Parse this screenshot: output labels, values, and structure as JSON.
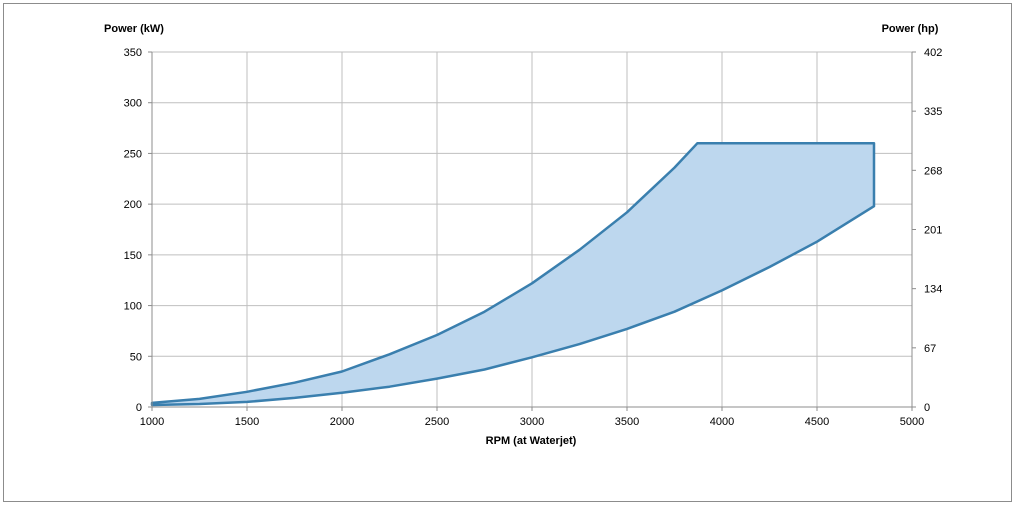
{
  "chart_data": {
    "type": "area",
    "title": "",
    "xlabel": "RPM (at Waterjet)",
    "ylabel": "Power (kW)",
    "y2label": "Power (hp)",
    "xlim": [
      1000,
      5000
    ],
    "ylim": [
      0,
      350
    ],
    "y2lim": [
      0,
      402
    ],
    "x_ticks": [
      1000,
      1500,
      2000,
      2500,
      3000,
      3500,
      4000,
      4500,
      5000
    ],
    "y_ticks": [
      0,
      50,
      100,
      150,
      200,
      250,
      300,
      350
    ],
    "y2_ticks": [
      0,
      67,
      134,
      201,
      268,
      335,
      402
    ],
    "grid": true,
    "legend": "none",
    "fill_color": "#bdd7ee",
    "line_color": "#3a7fae",
    "series": [
      {
        "role": "upper",
        "x": [
          1000,
          1250,
          1500,
          1750,
          2000,
          2250,
          2500,
          2750,
          3000,
          3250,
          3500,
          3750,
          3870,
          4000,
          4250,
          4500,
          4800
        ],
        "values": [
          4,
          8,
          15,
          24,
          35,
          52,
          71,
          94,
          122,
          155,
          192,
          236,
          260,
          260,
          260,
          260,
          260
        ]
      },
      {
        "role": "lower",
        "x": [
          1000,
          1250,
          1500,
          1750,
          2000,
          2250,
          2500,
          2750,
          3000,
          3250,
          3500,
          3750,
          4000,
          4250,
          4500,
          4800
        ],
        "values": [
          2,
          3,
          5,
          9,
          14,
          20,
          28,
          37,
          49,
          62,
          77,
          94,
          115,
          138,
          163,
          198
        ]
      }
    ]
  }
}
